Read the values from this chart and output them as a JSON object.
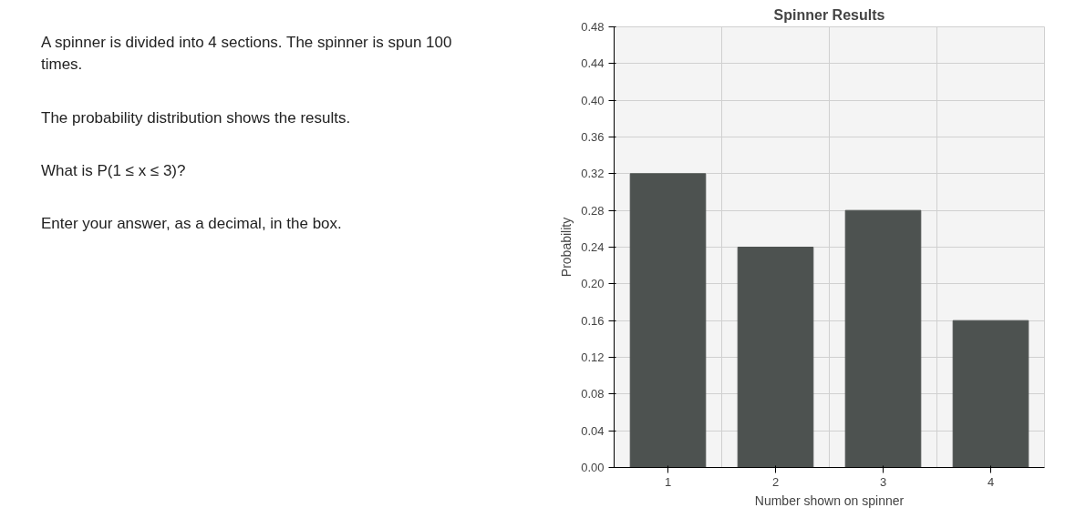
{
  "chart_data": {
    "type": "bar",
    "title": "Spinner Results",
    "xlabel": "Number shown on spinner",
    "ylabel": "Probability",
    "categories": [
      "1",
      "2",
      "3",
      "4"
    ],
    "values": [
      0.32,
      0.24,
      0.28,
      0.16
    ],
    "color": "#4d5250",
    "ylim": [
      0,
      0.48
    ],
    "yticks": [
      {
        "value": 0,
        "label": "0.00"
      },
      0.04,
      0.08,
      0.12,
      0.16,
      {
        "value": 0.2,
        "label": "0.20"
      },
      0.24,
      0.28,
      0.32,
      0.36,
      {
        "value": 0.4,
        "label": "0.40"
      },
      0.44,
      0.48
    ],
    "grid": true,
    "annotations": [
      "A spinner is divided into 4 sections. The spinner is spun 100 times.",
      "The probability distribution shows the results.",
      "What is P(1 ≤ x ≤ 3)?",
      "Enter your answer, as a decimal, in the box."
    ]
  }
}
